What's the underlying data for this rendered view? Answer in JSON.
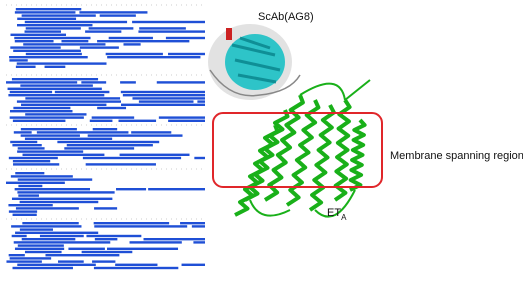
{
  "labels": {
    "antibody": "ScAb(AG8)",
    "region": "Membrane spanning region",
    "receptor": "ET",
    "receptor_subscript": "A"
  }
}
